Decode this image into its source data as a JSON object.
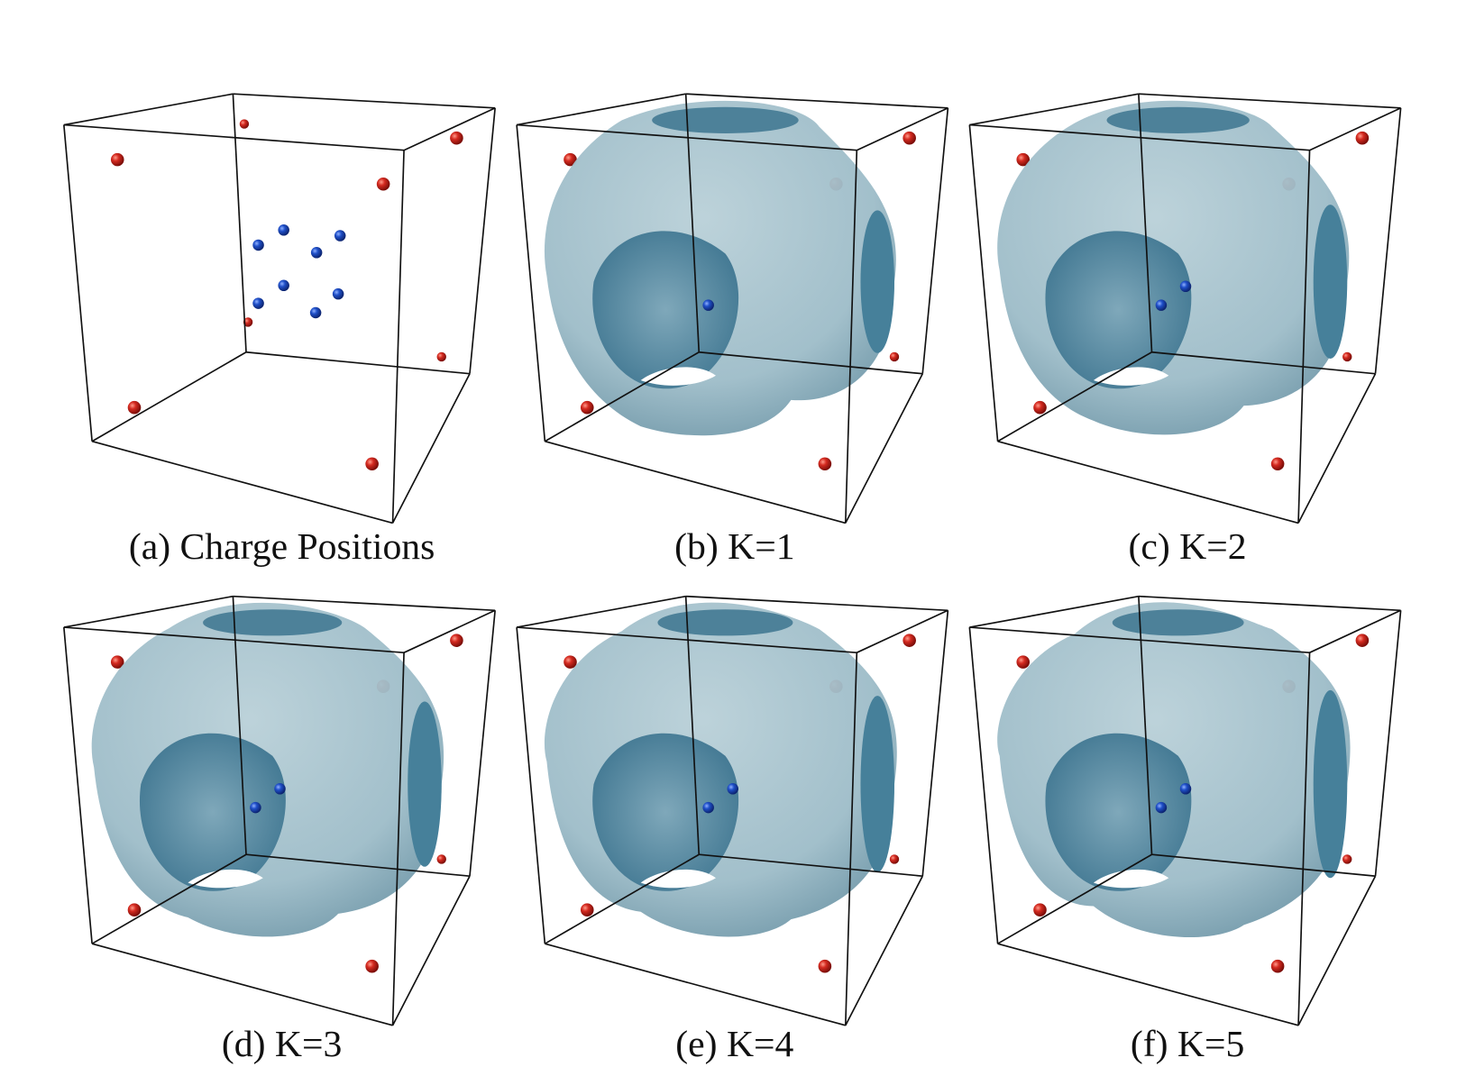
{
  "captions": [
    "(a) Charge Positions",
    "(b) K=1",
    "(c) K=2",
    "(d) K=3",
    "(e) K=4",
    "(f) K=5"
  ]
}
